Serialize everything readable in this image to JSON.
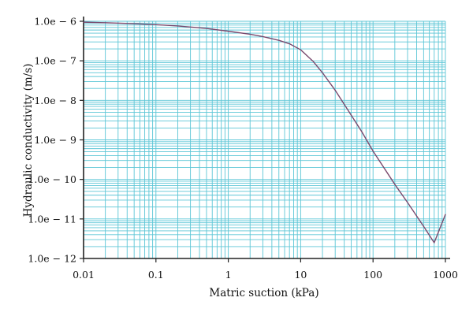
{
  "chart_data": {
    "type": "line",
    "xlabel": "Matric suction (kPa)",
    "ylabel": "Hydraulic conductivity (m/s)",
    "x_scale": "log",
    "y_scale": "log",
    "xlim": [
      0.01,
      1000
    ],
    "ylim": [
      1e-12,
      1e-06
    ],
    "grid": true,
    "x_ticks": [
      {
        "value": 0.01,
        "label": "0.01"
      },
      {
        "value": 0.1,
        "label": "0.1"
      },
      {
        "value": 1,
        "label": "1"
      },
      {
        "value": 10,
        "label": "10"
      },
      {
        "value": 100,
        "label": "100"
      },
      {
        "value": 1000,
        "label": "1000"
      }
    ],
    "y_ticks": [
      {
        "value": 1e-06,
        "label": "1.0e − 6"
      },
      {
        "value": 1e-07,
        "label": "1.0e − 7"
      },
      {
        "value": 1e-08,
        "label": "1.0e − 8"
      },
      {
        "value": 1e-09,
        "label": "1.0e − 9"
      },
      {
        "value": 1e-10,
        "label": "1.0e − 10"
      },
      {
        "value": 1e-11,
        "label": "1.0e − 11"
      },
      {
        "value": 1e-12,
        "label": "1.0e − 12"
      }
    ],
    "series": [
      {
        "color": "#7a4a6e",
        "x": [
          0.01,
          0.02,
          0.05,
          0.1,
          0.2,
          0.5,
          1,
          2,
          3,
          5,
          7,
          10,
          15,
          20,
          30,
          50,
          70,
          100,
          200,
          300,
          500,
          700,
          1000
        ],
        "y": [
          9.5e-07,
          9.2e-07,
          8.7e-07,
          8.2e-07,
          7.6e-07,
          6.6e-07,
          5.6e-07,
          4.7e-07,
          4.1e-07,
          3.3e-07,
          2.7e-07,
          1.9e-07,
          9.5e-08,
          5e-08,
          1.8e-08,
          4.2e-09,
          1.6e-09,
          5.2e-10,
          7.5e-11,
          2.6e-11,
          6.5e-12,
          2.5e-12,
          1.3e-11
        ]
      }
    ]
  }
}
